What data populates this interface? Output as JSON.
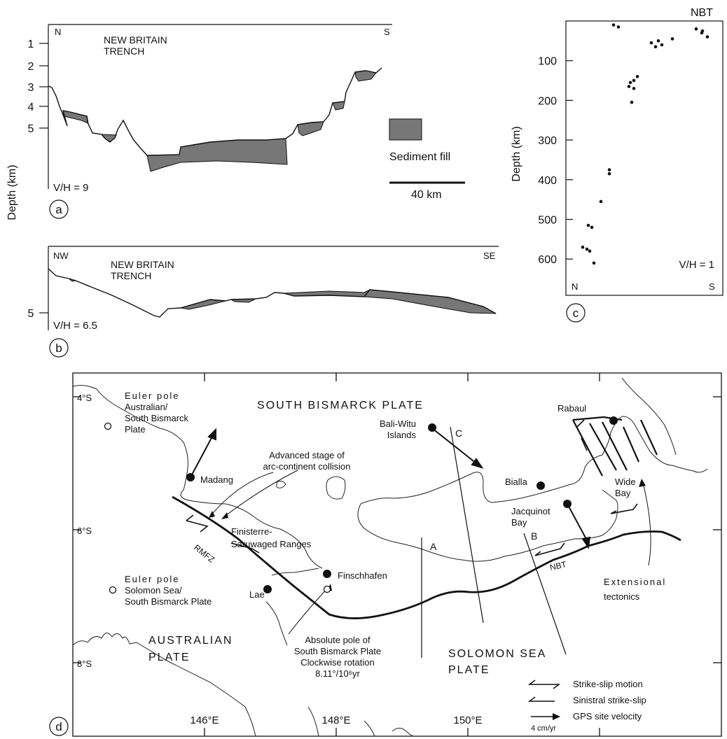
{
  "panel_a": {
    "panel_label": "a",
    "north": "N",
    "south": "S",
    "title": [
      "NEW BRITAIN",
      "TRENCH"
    ],
    "depth_ticks": [
      "1",
      "2",
      "3",
      "4",
      "5"
    ],
    "vh": "V/H = 9",
    "legend_label": "Sediment fill",
    "scale_label": "40 km"
  },
  "shared_depth_label": "Depth (km)",
  "panel_b": {
    "panel_label": "b",
    "nw": "NW",
    "se": "SE",
    "title": [
      "NEW BRITAIN",
      "TRENCH"
    ],
    "depth_tick": "5",
    "vh": "V/H = 6.5"
  },
  "panel_c": {
    "panel_label": "c",
    "top_label": "NBT",
    "ylabel": "Depth (km)",
    "yticks": [
      100,
      200,
      300,
      400,
      500,
      600
    ],
    "north": "N",
    "south": "S",
    "vh": "V/H = 1",
    "chart_data": {
      "type": "scatter",
      "ylabel": "Depth (km)",
      "ylim": [
        0,
        700
      ],
      "points_depth_km": [
        10,
        15,
        20,
        25,
        30,
        40,
        45,
        50,
        55,
        60,
        65,
        140,
        150,
        155,
        165,
        170,
        205,
        375,
        385,
        455,
        515,
        520,
        570,
        575,
        580,
        610
      ]
    }
  },
  "panel_d": {
    "panel_label": "d",
    "lat_labels": [
      "4°S",
      "6°S",
      "8°S"
    ],
    "lon_labels": [
      "146°E",
      "148°E",
      "150°E"
    ],
    "plate_labels": {
      "south_bismarck": "SOUTH BISMARCK PLATE",
      "australian": [
        "AUSTRALIAN",
        "PLATE"
      ],
      "solomon": [
        "SOLOMON SEA",
        "PLATE"
      ]
    },
    "places": {
      "bali_witu": [
        "Bali-Witu",
        "Islands"
      ],
      "rabaul": "Rabaul",
      "madang": "Madang",
      "bialla": "Bialla",
      "jacquinot": [
        "Jacquinot",
        "Bay"
      ],
      "wide_bay": [
        "Wide",
        "Bay"
      ],
      "finschhafen": "Finschhafen",
      "lae": "Lae",
      "finisterre": [
        "Finisterre-",
        "Saruwaged Ranges"
      ]
    },
    "annotations": {
      "euler_aus": [
        "Euler pole",
        "Australian/",
        "South Bismarck",
        "Plate"
      ],
      "euler_sol": [
        "Euler pole",
        "Solomon Sea/",
        "South Bismarck Plate"
      ],
      "advanced": [
        "Advanced stage of",
        "arc-continent collision"
      ],
      "absolute": [
        "Absolute pole of",
        "South Bismarck Plate",
        "Clockwise rotation",
        "8.11°/10⁶yr"
      ],
      "extensional": [
        "Extensional",
        "tectonics"
      ],
      "rmfz": "RMFZ",
      "nbt": "NBT",
      "A": "A",
      "B": "B",
      "C": "C"
    },
    "legend": {
      "strike_slip": "Strike-slip motion",
      "sinistral": "Sinistral strike-slip",
      "gps": "GPS site velocity",
      "gps_scale": "4 cm/yr"
    }
  }
}
